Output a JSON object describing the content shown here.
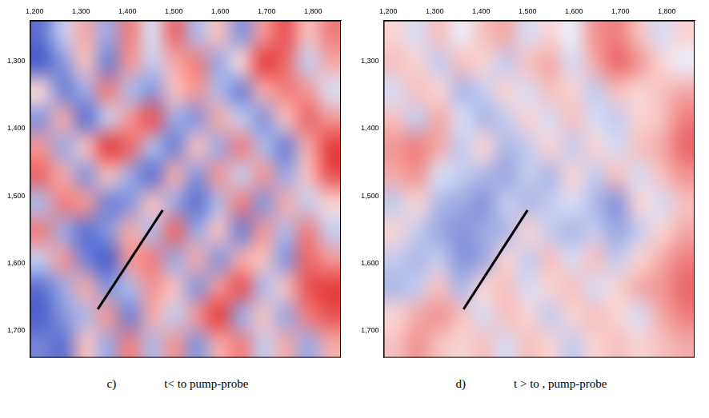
{
  "chart_data": [
    {
      "type": "heatmap",
      "caption_label": "c)",
      "caption": "t< to pump-probe",
      "xlim": [
        1190,
        1860
      ],
      "xticks": [
        1200,
        1300,
        1400,
        1500,
        1600,
        1700,
        1800
      ],
      "ylim": [
        1240,
        1740
      ],
      "yticks": [
        1300,
        1400,
        1500,
        1600,
        1700
      ],
      "grid": false,
      "clim": [
        -1,
        1
      ],
      "colors": [
        "#3a4ec4",
        "#ffffff",
        "#e22a2a"
      ],
      "cells": [
        [
          -0.8,
          -0.3,
          0.4,
          -0.5,
          0.6,
          -0.2,
          0.7,
          -0.4,
          0.3,
          -0.6,
          0.5,
          0.8,
          0.3,
          0.6
        ],
        [
          -0.9,
          -0.6,
          0.3,
          -0.7,
          0.5,
          -0.3,
          0.4,
          0.6,
          -0.5,
          0.2,
          0.9,
          0.7,
          -0.3,
          0.4
        ],
        [
          0.2,
          -0.7,
          -0.5,
          0.6,
          -0.4,
          -0.6,
          0.3,
          0.5,
          -0.4,
          -0.7,
          0.4,
          0.6,
          0.5,
          -0.2
        ],
        [
          -0.6,
          0.4,
          -0.8,
          -0.3,
          0.5,
          0.8,
          -0.5,
          -0.6,
          0.4,
          -0.3,
          -0.6,
          0.3,
          0.7,
          0.5
        ],
        [
          0.5,
          -0.5,
          0.3,
          0.9,
          0.7,
          -0.4,
          -0.7,
          0.3,
          -0.5,
          0.6,
          -0.4,
          -0.7,
          0.4,
          0.9
        ],
        [
          0.7,
          0.4,
          -0.6,
          0.3,
          -0.5,
          -0.8,
          0.4,
          -0.6,
          0.5,
          -0.3,
          0.5,
          -0.5,
          0.3,
          0.8
        ],
        [
          -0.4,
          0.6,
          0.5,
          -0.7,
          -0.6,
          0.3,
          -0.5,
          -0.8,
          -0.4,
          0.6,
          -0.6,
          0.4,
          -0.3,
          0.2
        ],
        [
          0.6,
          -0.5,
          -0.8,
          -0.6,
          0.4,
          -0.4,
          0.7,
          -0.5,
          0.3,
          -0.7,
          0.5,
          -0.4,
          0.6,
          -0.3
        ],
        [
          -0.3,
          0.5,
          -0.7,
          -0.9,
          0.5,
          0.6,
          -0.5,
          0.4,
          -0.6,
          0.4,
          0.3,
          -0.6,
          0.7,
          0.5
        ],
        [
          -0.8,
          -0.5,
          0.4,
          -0.6,
          -0.4,
          0.5,
          0.3,
          -0.6,
          0.5,
          0.8,
          -0.4,
          0.3,
          0.8,
          0.9
        ],
        [
          -0.9,
          -0.6,
          -0.4,
          0.5,
          -0.7,
          0.4,
          -0.3,
          0.5,
          0.9,
          -0.5,
          0.3,
          -0.5,
          0.6,
          0.8
        ],
        [
          -0.7,
          -0.8,
          0.3,
          -0.5,
          0.6,
          -0.4,
          0.5,
          -0.6,
          0.4,
          0.6,
          -0.3,
          0.4,
          -0.5,
          0.4
        ]
      ],
      "line": {
        "x": [
          1336,
          1476
        ],
        "y": [
          1668,
          1521
        ],
        "color": "#000000"
      }
    },
    {
      "type": "heatmap",
      "caption_label": "d)",
      "caption": "t > to , pump-probe",
      "xlim": [
        1190,
        1860
      ],
      "xticks": [
        1200,
        1300,
        1400,
        1500,
        1600,
        1700,
        1800
      ],
      "ylim": [
        1240,
        1740
      ],
      "yticks": [
        1300,
        1400,
        1500,
        1600,
        1700
      ],
      "grid": false,
      "clim": [
        -1,
        1
      ],
      "colors": [
        "#3a4ec4",
        "#ffffff",
        "#e22a2a"
      ],
      "cells": [
        [
          0.2,
          -0.2,
          0.3,
          -0.1,
          0.3,
          0.4,
          -0.2,
          0.2,
          -0.1,
          0.5,
          0.6,
          0.3,
          -0.2,
          0.2
        ],
        [
          0.3,
          0.2,
          -0.3,
          0.3,
          0.2,
          -0.3,
          0.3,
          0.4,
          -0.2,
          0.4,
          0.7,
          0.5,
          0.2,
          -0.1
        ],
        [
          -0.2,
          0.3,
          0.2,
          -0.4,
          -0.3,
          0.2,
          -0.2,
          0.3,
          0.2,
          -0.3,
          0.3,
          0.2,
          0.3,
          0.4
        ],
        [
          0.3,
          -0.3,
          0.4,
          -0.2,
          -0.4,
          -0.3,
          0.2,
          -0.2,
          0.3,
          -0.2,
          -0.3,
          0.2,
          0.3,
          0.6
        ],
        [
          0.5,
          0.6,
          0.4,
          -0.3,
          0.2,
          -0.4,
          -0.3,
          0.2,
          -0.3,
          0.2,
          -0.2,
          0.3,
          0.4,
          0.7
        ],
        [
          0.4,
          0.5,
          -0.2,
          -0.3,
          -0.4,
          -0.5,
          -0.3,
          -0.4,
          0.2,
          -0.3,
          0.3,
          -0.2,
          0.3,
          0.5
        ],
        [
          -0.3,
          0.2,
          -0.4,
          -0.5,
          -0.6,
          -0.3,
          -0.4,
          -0.3,
          -0.2,
          -0.4,
          -0.6,
          0.2,
          -0.2,
          0.3
        ],
        [
          0.2,
          -0.3,
          -0.5,
          -0.6,
          -0.5,
          -0.4,
          0.2,
          -0.3,
          -0.4,
          -0.3,
          -0.5,
          -0.3,
          0.2,
          0.4
        ],
        [
          -0.3,
          -0.4,
          -0.3,
          -0.6,
          -0.5,
          0.2,
          -0.3,
          0.3,
          -0.2,
          0.3,
          -0.3,
          0.2,
          0.4,
          0.6
        ],
        [
          -0.4,
          -0.3,
          0.3,
          -0.4,
          0.2,
          0.3,
          -0.2,
          0.2,
          0.3,
          -0.2,
          0.2,
          0.4,
          0.5,
          0.7
        ],
        [
          0.2,
          0.4,
          0.5,
          0.3,
          -0.2,
          0.3,
          0.2,
          -0.3,
          0.2,
          0.3,
          0.2,
          -0.2,
          0.4,
          0.6
        ],
        [
          0.3,
          0.5,
          0.3,
          0.2,
          0.3,
          -0.2,
          0.3,
          0.2,
          -0.3,
          0.2,
          0.3,
          0.2,
          0.3,
          0.4
        ]
      ],
      "line": {
        "x": [
          1362,
          1500
        ],
        "y": [
          1668,
          1521
        ],
        "color": "#000000"
      }
    }
  ]
}
